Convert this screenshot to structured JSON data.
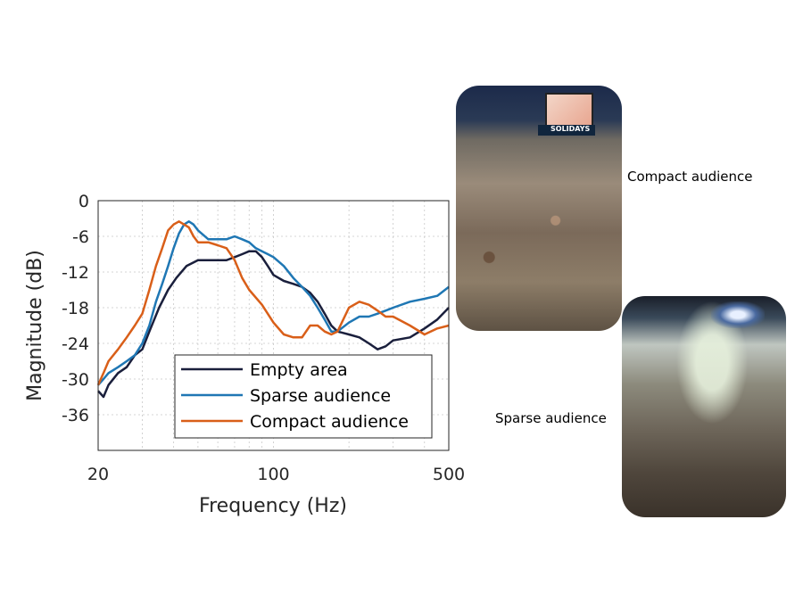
{
  "chart_data": {
    "type": "line",
    "title": "",
    "xlabel": "Frequency (Hz)",
    "ylabel": "Magnitude (dB)",
    "xscale": "log",
    "xlim": [
      20,
      500
    ],
    "ylim": [
      -42,
      0
    ],
    "xticks": [
      20,
      100,
      500
    ],
    "xtick_labels": [
      "20",
      "100",
      "500"
    ],
    "yticks": [
      0,
      -6,
      -12,
      -18,
      -24,
      -30,
      -36
    ],
    "ytick_labels": [
      "0",
      "-6",
      "-12",
      "-18",
      "-24",
      "-30",
      "-36"
    ],
    "grid": true,
    "legend_position": "bottom-right",
    "series": [
      {
        "name": "Empty area",
        "color": "#1a1f3c",
        "x": [
          20,
          21,
          22,
          24,
          26,
          28,
          30,
          32,
          35,
          38,
          41,
          45,
          50,
          55,
          60,
          65,
          70,
          75,
          80,
          85,
          90,
          95,
          100,
          110,
          120,
          130,
          140,
          150,
          160,
          170,
          180,
          200,
          220,
          240,
          260,
          280,
          300,
          350,
          400,
          450,
          500
        ],
        "y": [
          -32,
          -33,
          -31,
          -29,
          -28,
          -26,
          -25,
          -22,
          -18,
          -15,
          -13,
          -11,
          -10,
          -10,
          -10,
          -10,
          -9.5,
          -9,
          -8.5,
          -8.5,
          -9.5,
          -11,
          -12.5,
          -13.5,
          -14,
          -14.5,
          -15.5,
          -17,
          -19,
          -21,
          -22,
          -22.5,
          -23,
          -24,
          -25,
          -24.5,
          -23.5,
          -23,
          -21.5,
          -20,
          -18
        ]
      },
      {
        "name": "Sparse audience",
        "color": "#1f77b4",
        "x": [
          20,
          21,
          22,
          24,
          26,
          28,
          30,
          32,
          34,
          36,
          38,
          40,
          42,
          44,
          46,
          48,
          50,
          55,
          60,
          65,
          70,
          75,
          80,
          85,
          90,
          95,
          100,
          110,
          120,
          130,
          140,
          150,
          160,
          170,
          180,
          200,
          220,
          240,
          260,
          280,
          300,
          350,
          400,
          450,
          500
        ],
        "y": [
          -31,
          -30,
          -29,
          -28,
          -27,
          -26,
          -24,
          -21,
          -17,
          -14,
          -11,
          -8,
          -5.5,
          -4,
          -3.5,
          -4,
          -5,
          -6.5,
          -6.5,
          -6.5,
          -6,
          -6.5,
          -7,
          -8,
          -8.5,
          -9,
          -9.5,
          -11,
          -13,
          -14.5,
          -16,
          -18,
          -20,
          -22,
          -22,
          -20.5,
          -19.5,
          -19.5,
          -19,
          -18.5,
          -18,
          -17,
          -16.5,
          -16,
          -14.5
        ]
      },
      {
        "name": "Compact audience",
        "color": "#d95f19",
        "x": [
          20,
          21,
          22,
          24,
          26,
          28,
          30,
          32,
          34,
          36,
          38,
          40,
          42,
          44,
          46,
          48,
          50,
          55,
          60,
          65,
          70,
          75,
          80,
          90,
          100,
          110,
          120,
          130,
          140,
          150,
          160,
          170,
          180,
          200,
          220,
          240,
          260,
          280,
          300,
          350,
          400,
          450,
          500
        ],
        "y": [
          -31,
          -29,
          -27,
          -25,
          -23,
          -21,
          -19,
          -15,
          -11,
          -8,
          -5,
          -4,
          -3.5,
          -4,
          -4.5,
          -6,
          -7,
          -7,
          -7.5,
          -8,
          -10,
          -13,
          -15,
          -17.5,
          -20.5,
          -22.5,
          -23,
          -23,
          -21,
          -21,
          -22,
          -22.5,
          -22,
          -18,
          -17,
          -17.5,
          -18.5,
          -19.5,
          -19.5,
          -21,
          -22.5,
          -21.5,
          -21
        ]
      }
    ]
  },
  "photos": {
    "compact": {
      "label": "Compact audience",
      "stage_text": "SOLIDAYS"
    },
    "sparse": {
      "label": "Sparse audience"
    }
  }
}
